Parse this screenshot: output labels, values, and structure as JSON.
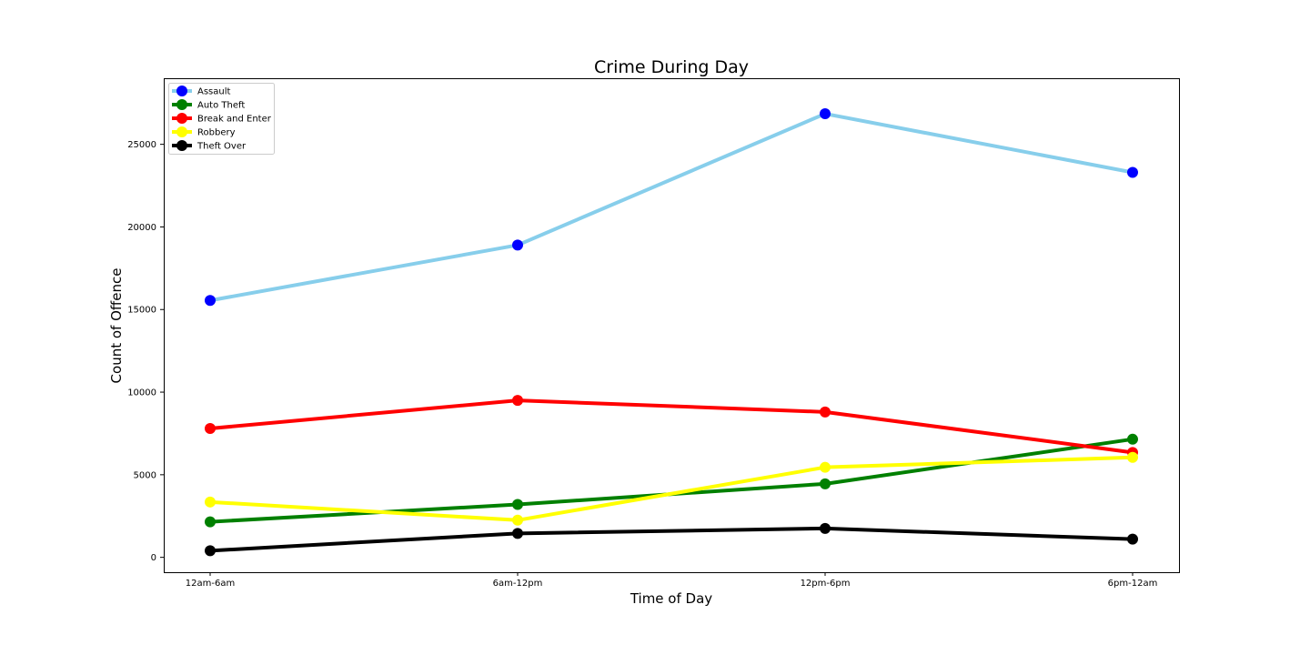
{
  "chart_data": {
    "type": "line",
    "title": "Crime During Day",
    "xlabel": "Time of Day",
    "ylabel": "Count of Offence",
    "categories": [
      "12am-6am",
      "6am-12pm",
      "12pm-6pm",
      "6pm-12am"
    ],
    "ylim": [
      -900,
      29000
    ],
    "yticks": [
      0,
      5000,
      10000,
      15000,
      20000,
      25000
    ],
    "ytick_labels": [
      "0",
      "5000",
      "10000",
      "15000",
      "20000",
      "25000"
    ],
    "grid": false,
    "legend_position": "top-left",
    "series": [
      {
        "name": "Assault",
        "values": [
          15550,
          18900,
          26850,
          23300
        ],
        "line_color": "#87ceeb",
        "marker_color": "#0000ff"
      },
      {
        "name": "Auto Theft",
        "values": [
          2150,
          3200,
          4450,
          7150
        ],
        "line_color": "#008000",
        "marker_color": "#008000"
      },
      {
        "name": "Break and Enter",
        "values": [
          7800,
          9500,
          8800,
          6350
        ],
        "line_color": "#ff0000",
        "marker_color": "#ff0000"
      },
      {
        "name": "Robbery",
        "values": [
          3350,
          2250,
          5450,
          6050
        ],
        "line_color": "#ffff00",
        "marker_color": "#ffff00"
      },
      {
        "name": "Theft Over",
        "values": [
          400,
          1450,
          1750,
          1100
        ],
        "line_color": "#000000",
        "marker_color": "#000000"
      }
    ]
  }
}
